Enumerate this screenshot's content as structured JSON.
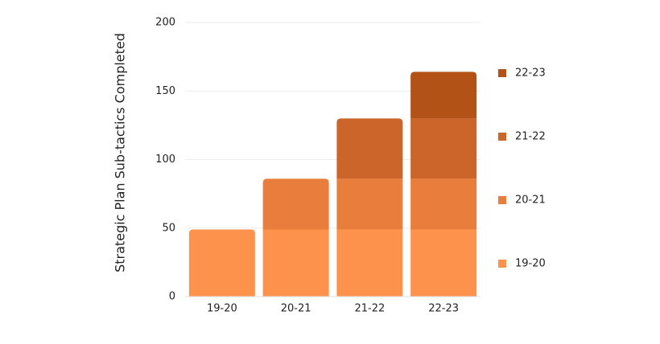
{
  "chart_data": {
    "type": "stacked-bar",
    "y_label": "Strategic Plan Sub-tactics Completed",
    "categories": [
      "19-20",
      "20-21",
      "21-22",
      "22-23"
    ],
    "series": [
      {
        "name": "19-20",
        "color": "#fd924d",
        "values": [
          49,
          49,
          49,
          49
        ]
      },
      {
        "name": "20-21",
        "color": "#e97d3b",
        "values": [
          null,
          37,
          37,
          37
        ]
      },
      {
        "name": "21-22",
        "color": "#cb652a",
        "values": [
          null,
          null,
          44,
          44
        ]
      },
      {
        "name": "22-23",
        "color": "#b25216",
        "values": [
          null,
          null,
          null,
          34
        ]
      }
    ],
    "ylim": [
      0,
      200
    ],
    "yticks": [
      0,
      50,
      100,
      150,
      200
    ],
    "grid": true,
    "legend": "right"
  }
}
